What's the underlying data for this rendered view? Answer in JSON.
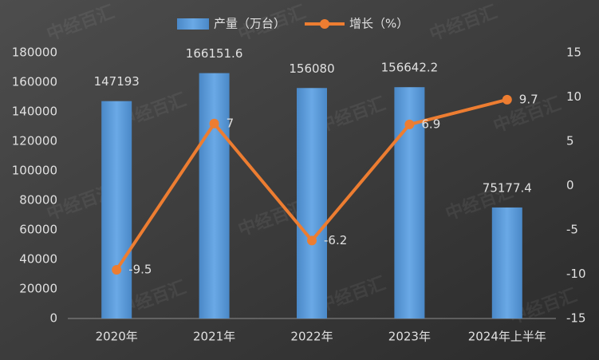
{
  "chart_data": {
    "type": "combo",
    "watermark": "中经百汇",
    "categories": [
      "2020年",
      "2021年",
      "2022年",
      "2023年",
      "2024年上半年"
    ],
    "series": [
      {
        "name": "产量（万台）",
        "type": "bar",
        "color": "#5b9bd5",
        "axis": "y",
        "values": [
          147193,
          166151.6,
          156080,
          156642.2,
          75177.4
        ]
      },
      {
        "name": "增长（%）",
        "type": "line",
        "color": "#ed7d31",
        "axis": "y2",
        "values": [
          -9.5,
          7,
          -6.2,
          6.9,
          9.7
        ]
      }
    ],
    "ylim": [
      0,
      180000
    ],
    "yticks": [
      0,
      20000,
      40000,
      60000,
      80000,
      100000,
      120000,
      140000,
      160000,
      180000
    ],
    "y2lim": [
      -15,
      15
    ],
    "y2ticks": [
      -15,
      -10,
      -5,
      0,
      5,
      10,
      15
    ],
    "grid": false
  }
}
